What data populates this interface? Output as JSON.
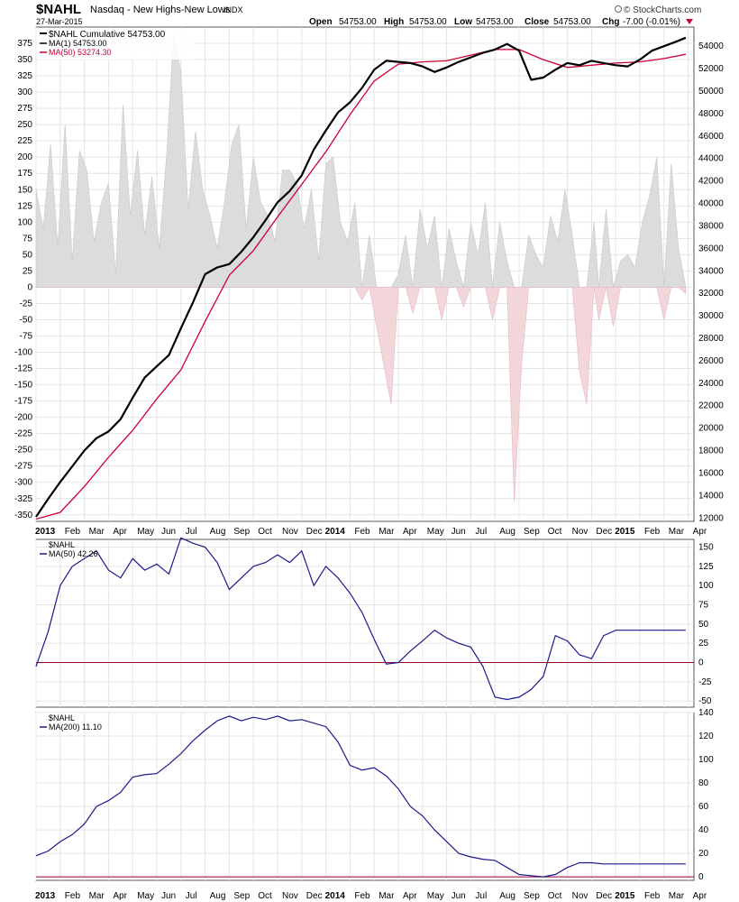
{
  "header": {
    "symbol": "$NAHL",
    "name": "Nasdaq - New Highs-New Lows",
    "tag": "INDX",
    "date": "27-Mar-2015",
    "brand": "© StockCharts.com",
    "open_label": "Open",
    "open_value": "54753.00",
    "high_label": "High",
    "high_value": "54753.00",
    "low_label": "Low",
    "low_value": "54753.00",
    "close_label": "Close",
    "close_value": "54753.00",
    "chg_label": "Chg",
    "chg_value": "-7.00 (-0.01%)"
  },
  "colors": {
    "cumulative": "#000000",
    "ma50_cumulative": "#cc0033",
    "hist_positive": "#dcdcdc",
    "hist_negative": "#f2d6da",
    "ma_line": "#1a1a8c",
    "zero_line": "#990033",
    "grid": "#e4e4e4",
    "frame": "#555555"
  },
  "chart_data": [
    {
      "type": "line",
      "title": "",
      "legend": [
        {
          "label": "$NAHL Cumulative 54753.00",
          "color": "#000000"
        },
        {
          "label": "MA(1) 54753.00",
          "color": "#000000"
        },
        {
          "label": "MA(50) 53274.30",
          "color": "#cc0033"
        }
      ],
      "left_axis_ticks": [
        375,
        350,
        325,
        300,
        275,
        250,
        225,
        200,
        175,
        150,
        125,
        100,
        75,
        50,
        25,
        0,
        -25,
        -50,
        -75,
        -100,
        -125,
        -150,
        -175,
        -200,
        -225,
        -250,
        -275,
        -300,
        -325,
        -350
      ],
      "left_ylim": [
        -360,
        400
      ],
      "right_axis_ticks": [
        54000,
        52000,
        50000,
        48000,
        46000,
        44000,
        42000,
        40000,
        38000,
        36000,
        34000,
        32000,
        30000,
        28000,
        26000,
        24000,
        22000,
        20000,
        18000,
        16000,
        14000,
        12000
      ],
      "right_ylim": [
        11700,
        55700
      ],
      "series": [
        {
          "kind": "cumulative",
          "axis": "right",
          "x": [
            0,
            0.5,
            1,
            1.5,
            2,
            2.5,
            3,
            3.5,
            4,
            4.5,
            5,
            5.5,
            6,
            6.5,
            7,
            7.5,
            8,
            8.5,
            9,
            9.5,
            10,
            10.5,
            11,
            11.5,
            12,
            12.5,
            13,
            13.5,
            14,
            14.5,
            15,
            15.5,
            16,
            16.5,
            17,
            17.5,
            18,
            18.5,
            19,
            19.5,
            20,
            20.5,
            21,
            21.5,
            22,
            22.5,
            23,
            23.5,
            24,
            24.5,
            25,
            25.5,
            26,
            26.5,
            26.9
          ],
          "values": [
            12100,
            13700,
            15200,
            16600,
            18000,
            19100,
            19700,
            20800,
            22700,
            24500,
            25500,
            26500,
            28900,
            31200,
            33700,
            34300,
            34600,
            35700,
            37000,
            38500,
            40100,
            41100,
            42500,
            44800,
            46500,
            48100,
            49000,
            50300,
            51900,
            52700,
            52600,
            52500,
            52200,
            51700,
            52100,
            52600,
            53000,
            53400,
            53700,
            54200,
            53600,
            51000,
            51200,
            51900,
            52500,
            52300,
            52700,
            52500,
            52300,
            52200,
            52800,
            53600,
            54000,
            54400,
            54753
          ]
        },
        {
          "kind": "ma50",
          "axis": "right",
          "x": [
            0,
            1,
            2,
            3,
            4,
            5,
            6,
            7,
            8,
            9,
            10,
            11,
            12,
            13,
            14,
            15,
            16,
            17,
            18,
            19,
            20,
            21,
            22,
            23,
            24,
            25,
            26,
            26.9
          ],
          "values": [
            11900,
            12500,
            14800,
            17400,
            19800,
            22600,
            25200,
            29500,
            33600,
            35800,
            38800,
            41700,
            44600,
            47900,
            50900,
            52400,
            52600,
            52700,
            53200,
            53700,
            53700,
            52800,
            52100,
            52300,
            52500,
            52600,
            52900,
            53274
          ]
        },
        {
          "kind": "histogram",
          "axis": "left",
          "label": "daily NH-NL",
          "x": [
            0,
            0.3,
            0.6,
            0.9,
            1.2,
            1.5,
            1.8,
            2.1,
            2.4,
            2.7,
            3.0,
            3.3,
            3.6,
            3.9,
            4.2,
            4.5,
            4.8,
            5.1,
            5.4,
            5.7,
            6.0,
            6.3,
            6.6,
            6.9,
            7.2,
            7.5,
            7.8,
            8.1,
            8.4,
            8.7,
            9.0,
            9.3,
            9.6,
            9.9,
            10.2,
            10.5,
            10.8,
            11.1,
            11.4,
            11.7,
            12.0,
            12.3,
            12.6,
            12.9,
            13.2,
            13.5,
            13.8,
            14.1,
            14.4,
            14.7,
            15.0,
            15.3,
            15.6,
            15.9,
            16.2,
            16.5,
            16.8,
            17.1,
            17.4,
            17.7,
            18.0,
            18.3,
            18.6,
            18.9,
            19.2,
            19.5,
            19.8,
            20.1,
            20.4,
            20.7,
            21.0,
            21.3,
            21.6,
            21.9,
            22.2,
            22.5,
            22.8,
            23.1,
            23.3,
            23.6,
            23.9,
            24.2,
            24.5,
            24.8,
            25.1,
            25.4,
            25.7,
            26.0,
            26.3,
            26.6,
            26.9
          ],
          "values": [
            150,
            90,
            220,
            60,
            250,
            40,
            210,
            180,
            70,
            130,
            160,
            20,
            280,
            110,
            210,
            80,
            170,
            60,
            200,
            390,
            330,
            120,
            240,
            150,
            110,
            60,
            130,
            220,
            250,
            90,
            200,
            130,
            110,
            70,
            180,
            180,
            160,
            90,
            150,
            40,
            190,
            200,
            100,
            70,
            130,
            -20,
            80,
            -60,
            -120,
            -180,
            20,
            80,
            -40,
            120,
            60,
            110,
            -50,
            90,
            40,
            -30,
            100,
            50,
            130,
            -50,
            100,
            40,
            -330,
            -120,
            80,
            50,
            30,
            110,
            70,
            150,
            80,
            -130,
            -180,
            100,
            -50,
            120,
            -60,
            40,
            50,
            30,
            100,
            140,
            200,
            -50,
            190,
            60,
            -10
          ]
        }
      ]
    },
    {
      "type": "line",
      "title": "$NAHL",
      "legend": [
        {
          "label": "MA(50) 42.26",
          "color": "#1a1a8c"
        }
      ],
      "ylim": [
        -58,
        160
      ],
      "y_ticks": [
        150,
        125,
        100,
        75,
        50,
        25,
        0,
        -25,
        -50
      ],
      "series": [
        {
          "name": "MA(50)",
          "x": [
            0,
            0.5,
            1,
            1.5,
            2,
            2.5,
            3,
            3.5,
            4,
            4.5,
            5,
            5.5,
            6,
            6.5,
            7,
            7.5,
            8,
            8.5,
            9,
            9.5,
            10,
            10.5,
            11,
            11.5,
            12,
            12.5,
            13,
            13.5,
            14,
            14.5,
            15,
            15.5,
            16,
            16.5,
            17,
            17.5,
            18,
            18.5,
            19,
            19.5,
            20,
            20.5,
            21,
            21.5,
            22,
            22.5,
            23,
            23.5,
            24,
            24.5,
            25,
            25.5,
            26,
            26.5,
            26.9
          ],
          "values": [
            -5,
            40,
            100,
            125,
            135,
            145,
            120,
            110,
            135,
            120,
            128,
            115,
            162,
            155,
            150,
            130,
            95,
            110,
            125,
            130,
            140,
            130,
            145,
            100,
            125,
            110,
            90,
            65,
            30,
            -2,
            0,
            15,
            28,
            42,
            32,
            25,
            20,
            -5,
            -45,
            -48,
            -45,
            -35,
            -18,
            35,
            28,
            10,
            5,
            35,
            42,
            42,
            42,
            42,
            42,
            42,
            42
          ]
        }
      ]
    },
    {
      "type": "line",
      "title": "$NAHL",
      "legend": [
        {
          "label": "MA(200) 11.10",
          "color": "#1a1a8c"
        }
      ],
      "ylim": [
        -3,
        140
      ],
      "y_ticks": [
        140,
        120,
        100,
        80,
        60,
        40,
        20,
        0
      ],
      "series": [
        {
          "name": "MA(200)",
          "x": [
            0,
            0.5,
            1,
            1.5,
            2,
            2.5,
            3,
            3.5,
            4,
            4.5,
            5,
            5.5,
            6,
            6.5,
            7,
            7.5,
            8,
            8.5,
            9,
            9.5,
            10,
            10.5,
            11,
            11.5,
            12,
            12.5,
            13,
            13.5,
            14,
            14.5,
            15,
            15.5,
            16,
            16.5,
            17,
            17.5,
            18,
            18.5,
            19,
            19.5,
            20,
            20.5,
            21,
            21.5,
            22,
            22.5,
            23,
            23.5,
            24,
            24.5,
            25,
            25.5,
            26,
            26.5,
            26.9
          ],
          "values": [
            18,
            22,
            30,
            36,
            45,
            60,
            65,
            72,
            85,
            87,
            88,
            96,
            105,
            116,
            125,
            133,
            137,
            133,
            136,
            134,
            137,
            133,
            134,
            131,
            128,
            115,
            95,
            91,
            93,
            86,
            75,
            60,
            52,
            40,
            30,
            20,
            17,
            15,
            14,
            8,
            2,
            1,
            0,
            2,
            8,
            12,
            12,
            11,
            11,
            11,
            11,
            11,
            11,
            11,
            11
          ]
        }
      ]
    }
  ],
  "x_axis": {
    "labels": [
      "2013",
      "Feb",
      "Mar",
      "Apr",
      "May",
      "Jun",
      "Jul",
      "Aug",
      "Sep",
      "Oct",
      "Nov",
      "Dec",
      "2014",
      "Feb",
      "Mar",
      "Apr",
      "May",
      "Jun",
      "Jul",
      "Aug",
      "Sep",
      "Oct",
      "Nov",
      "Dec",
      "2015",
      "Feb",
      "Mar",
      "Apr"
    ],
    "bold": [
      "2013",
      "2014",
      "2015"
    ]
  }
}
